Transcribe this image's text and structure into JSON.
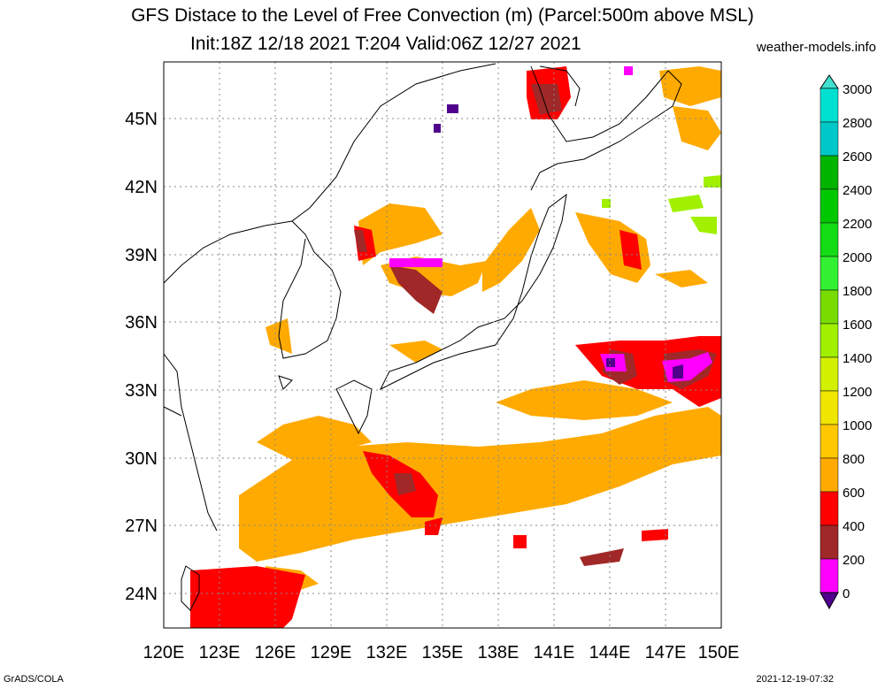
{
  "header": {
    "title": "GFS Distace to the Level of Free Convection (m) (Parcel:500m above MSL)",
    "subtitle": "Init:18Z 12/18 2021 T:204 Valid:06Z 12/27 2021",
    "site": "weather-models.info"
  },
  "footer": {
    "left": "GrADS/COLA",
    "right": "2021-12-19-07:32"
  },
  "map": {
    "lon_labels": [
      "120E",
      "123E",
      "126E",
      "129E",
      "132E",
      "135E",
      "138E",
      "141E",
      "144E",
      "147E",
      "150E"
    ],
    "lat_labels": [
      "45N",
      "42N",
      "39N",
      "36N",
      "33N",
      "30N",
      "27N",
      "24N"
    ],
    "lon_range": [
      120,
      150
    ],
    "lat_range": [
      22.5,
      47.5
    ],
    "grid": "dotted"
  },
  "colorbar": {
    "labels": [
      "3000",
      "2800",
      "2600",
      "2400",
      "2200",
      "2000",
      "1800",
      "1600",
      "1400",
      "1200",
      "1000",
      "800",
      "600",
      "400",
      "200",
      "0"
    ],
    "colors": [
      "#00e0d0",
      "#00c8c8",
      "#00b400",
      "#00c800",
      "#14dc14",
      "#32f032",
      "#78dc00",
      "#a0f000",
      "#d2f000",
      "#f0e600",
      "#ffc800",
      "#ffaa00",
      "#ff0000",
      "#a02828",
      "#ff00ff",
      "#50008c"
    ],
    "cap_top_color": "#40e0d0",
    "cap_bottom_color": "#50008c"
  }
}
